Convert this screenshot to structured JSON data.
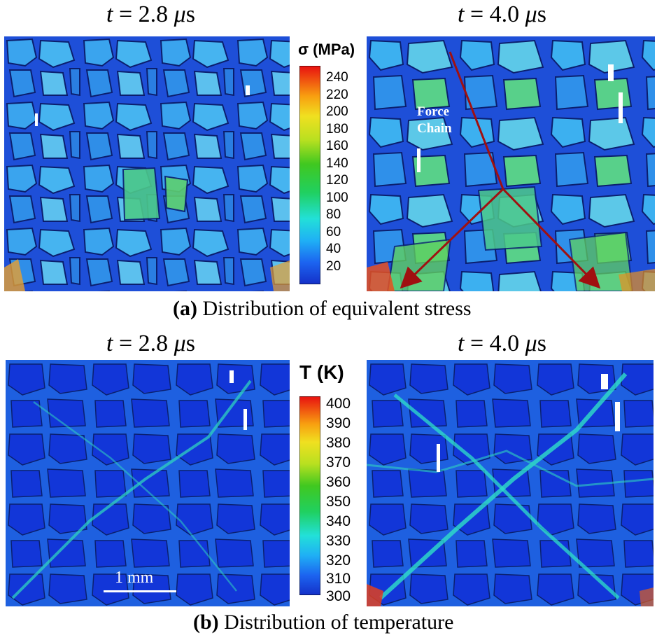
{
  "stress_row": {
    "left_time": {
      "prefix": "t",
      "value": " = 2.8 ",
      "unit_mu": "μ",
      "unit_s": "s"
    },
    "right_time": {
      "prefix": "t",
      "value": " = 4.0 ",
      "unit_mu": "μ",
      "unit_s": "s"
    },
    "colorbar_title": "σ (MPa)",
    "colorbar_ticks": [
      "240",
      "220",
      "200",
      "180",
      "160",
      "140",
      "120",
      "100",
      "80",
      "60",
      "40",
      "20"
    ],
    "annotation_line1": "Force",
    "annotation_line2": "Chain",
    "caption_label": "(a)",
    "caption_text": " Distribution of equivalent stress"
  },
  "temp_row": {
    "left_time": {
      "prefix": "t",
      "value": " = 2.8 ",
      "unit_mu": "μ",
      "unit_s": "s"
    },
    "right_time": {
      "prefix": "t",
      "value": " = 4.0 ",
      "unit_mu": "μ",
      "unit_s": "s"
    },
    "colorbar_title": "T (K)",
    "colorbar_ticks": [
      "400",
      "390",
      "380",
      "370",
      "360",
      "350",
      "340",
      "330",
      "320",
      "310",
      "300"
    ],
    "scale_bar_label": "1 mm",
    "caption_label": "(b)",
    "caption_text": " Distribution of temperature"
  },
  "colors": {
    "grain_blue": "#1f55e0",
    "boundary_dark": "#0b1f6e",
    "stress_fill_light": "#38a6ee",
    "force_chain_arrow": "#a01010",
    "temp_fill": "#1236d8",
    "temp_hot_boundary": "#2fd2c0"
  }
}
